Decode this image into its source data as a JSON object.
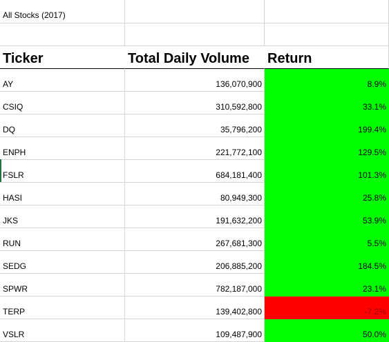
{
  "sheet": {
    "title": "All Stocks (2017)",
    "headers": {
      "ticker": "Ticker",
      "volume": "Total Daily Volume",
      "return": "Return"
    },
    "rows": [
      {
        "ticker": "AY",
        "volume": "136,070,900",
        "return": "8.9%",
        "status": "positive"
      },
      {
        "ticker": "CSIQ",
        "volume": "310,592,800",
        "return": "33.1%",
        "status": "positive"
      },
      {
        "ticker": "DQ",
        "volume": "35,796,200",
        "return": "199.4%",
        "status": "positive"
      },
      {
        "ticker": "ENPH",
        "volume": "221,772,100",
        "return": "129.5%",
        "status": "positive"
      },
      {
        "ticker": "FSLR",
        "volume": "684,181,400",
        "return": "101.3%",
        "status": "positive"
      },
      {
        "ticker": "HASI",
        "volume": "80,949,300",
        "return": "25.8%",
        "status": "positive"
      },
      {
        "ticker": "JKS",
        "volume": "191,632,200",
        "return": "53.9%",
        "status": "positive"
      },
      {
        "ticker": "RUN",
        "volume": "267,681,300",
        "return": "5.5%",
        "status": "positive"
      },
      {
        "ticker": "SEDG",
        "volume": "206,885,200",
        "return": "184.5%",
        "status": "positive"
      },
      {
        "ticker": "SPWR",
        "volume": "782,187,000",
        "return": "23.1%",
        "status": "positive"
      },
      {
        "ticker": "TERP",
        "volume": "139,402,800",
        "return": "-7.2%",
        "status": "negative"
      },
      {
        "ticker": "VSLR",
        "volume": "109,487,900",
        "return": "50.0%",
        "status": "positive"
      }
    ]
  },
  "colors": {
    "positive_fill": "#00ff00",
    "negative_fill": "#ff0000",
    "gridline": "#d4d4d4"
  }
}
